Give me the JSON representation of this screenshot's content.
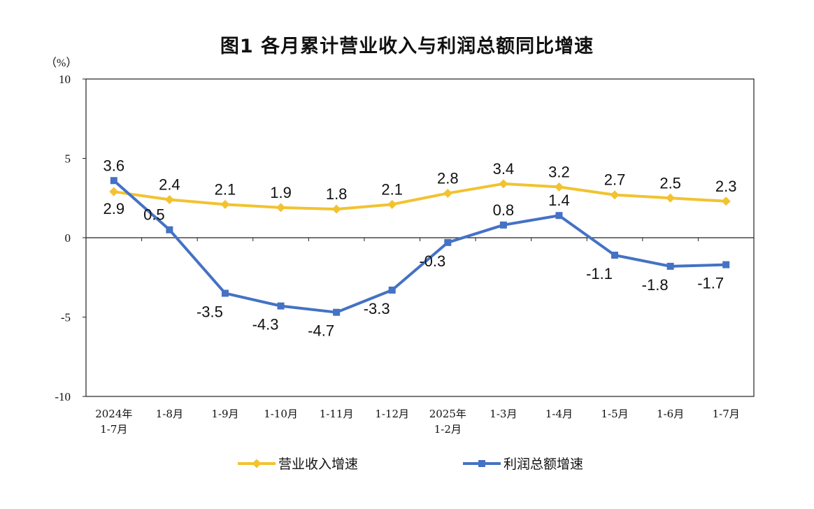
{
  "chart_data": {
    "type": "line",
    "title": "图1  各月累计营业收入与利润总额同比增速",
    "ylabel": "（%）",
    "ylim": [
      -10,
      10
    ],
    "yticks": [
      "10",
      "5",
      "0",
      "-5",
      "-10"
    ],
    "categories": [
      [
        "2024年",
        "1-7月"
      ],
      [
        "1-8月"
      ],
      [
        "1-9月"
      ],
      [
        "1-10月"
      ],
      [
        "1-11月"
      ],
      [
        "1-12月"
      ],
      [
        "2025年",
        "1-2月"
      ],
      [
        "1-3月"
      ],
      [
        "1-4月"
      ],
      [
        "1-5月"
      ],
      [
        "1-6月"
      ],
      [
        "1-7月"
      ]
    ],
    "series": [
      {
        "name": "营业收入增速",
        "color": "#F2C230",
        "marker": "diamond",
        "values": [
          2.9,
          2.4,
          2.1,
          1.9,
          1.8,
          2.1,
          2.8,
          3.4,
          3.2,
          2.7,
          2.5,
          2.3
        ],
        "labels": [
          "2.9",
          "2.4",
          "2.1",
          "1.9",
          "1.8",
          "2.1",
          "2.8",
          "3.4",
          "3.2",
          "2.7",
          "2.5",
          "2.3"
        ]
      },
      {
        "name": "利润总额增速",
        "color": "#4472C4",
        "marker": "square",
        "values": [
          3.6,
          0.5,
          -3.5,
          -4.3,
          -4.7,
          -3.3,
          -0.3,
          0.8,
          1.4,
          -1.1,
          -1.8,
          -1.7
        ],
        "labels": [
          "3.6",
          "0.5",
          "-3.5",
          "-4.3",
          "-4.7",
          "-3.3",
          "-0.3",
          "0.8",
          "1.4",
          "-1.1",
          "-1.8",
          "-1.7"
        ]
      }
    ],
    "legend_position": "bottom",
    "grid": false
  }
}
